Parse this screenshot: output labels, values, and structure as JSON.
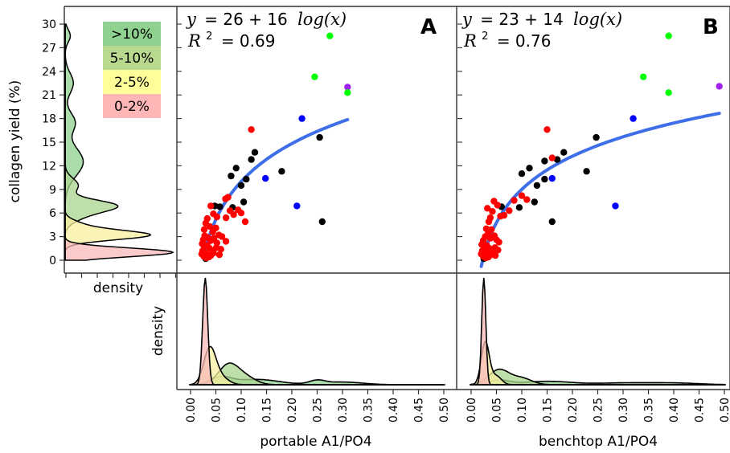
{
  "colors": {
    "black": "#000000",
    "red": "#ff0000",
    "blue": "#0000ff",
    "green": "#00ff00",
    "purple": "#a020f0",
    "fit": "#3f6fe8",
    "bin_0_2": "#f9b9b9",
    "bin_2_5": "#f8efa0",
    "bin_5_10": "#a9d48e",
    "bin_10": "#8fd18f"
  },
  "legend": {
    "items": [
      {
        "label": ">10%",
        "color": "#8fd18f"
      },
      {
        "label": "5-10%",
        "color": "#b9d98f"
      },
      {
        "label": "2-5%",
        "color": "#ffff99"
      },
      {
        "label": "0-2%",
        "color": "#ffb6b6"
      }
    ]
  },
  "chart_data": [
    {
      "panel": "A",
      "type": "scatter",
      "equation": {
        "y": "y",
        "rhs": "= 26 + 16",
        "fn": "log(x)",
        "r2_label": "R",
        "r2_value": "= 0.69"
      },
      "xlabel": "portable A1/PO4",
      "ylabel": "collagen yield (%)",
      "xlim": [
        0,
        0.5
      ],
      "ylim": [
        0,
        30
      ],
      "xticks": [
        "0.00",
        "0.05",
        "0.10",
        "0.15",
        "0.20",
        "0.25",
        "0.30",
        "0.35",
        "0.40",
        "0.45",
        "0.50"
      ],
      "yticks": [
        "0",
        "3",
        "6",
        "9",
        "12",
        "15",
        "18",
        "21",
        "24",
        "27",
        "30"
      ],
      "fit": {
        "a": 26,
        "b": 16,
        "x_from": 0.027,
        "x_to": 0.31
      },
      "points": [
        {
          "x": 0.275,
          "y": 28.5,
          "c": "green"
        },
        {
          "x": 0.31,
          "y": 22.0,
          "c": "purple"
        },
        {
          "x": 0.245,
          "y": 23.3,
          "c": "green"
        },
        {
          "x": 0.31,
          "y": 21.3,
          "c": "green"
        },
        {
          "x": 0.22,
          "y": 18.0,
          "c": "blue"
        },
        {
          "x": 0.148,
          "y": 10.4,
          "c": "blue"
        },
        {
          "x": 0.21,
          "y": 6.9,
          "c": "blue"
        },
        {
          "x": 0.12,
          "y": 16.6,
          "c": "red"
        },
        {
          "x": 0.255,
          "y": 15.6,
          "c": "black"
        },
        {
          "x": 0.127,
          "y": 13.7,
          "c": "black"
        },
        {
          "x": 0.12,
          "y": 12.8,
          "c": "black"
        },
        {
          "x": 0.18,
          "y": 11.3,
          "c": "black"
        },
        {
          "x": 0.11,
          "y": 10.3,
          "c": "black"
        },
        {
          "x": 0.09,
          "y": 11.7,
          "c": "black"
        },
        {
          "x": 0.08,
          "y": 10.7,
          "c": "black"
        },
        {
          "x": 0.1,
          "y": 9.5,
          "c": "black"
        },
        {
          "x": 0.105,
          "y": 7.4,
          "c": "black"
        },
        {
          "x": 0.083,
          "y": 6.7,
          "c": "black"
        },
        {
          "x": 0.058,
          "y": 6.8,
          "c": "black"
        },
        {
          "x": 0.26,
          "y": 4.9,
          "c": "black"
        },
        {
          "x": 0.048,
          "y": 6.9,
          "c": "black"
        },
        {
          "x": 0.03,
          "y": 0.2,
          "c": "black"
        },
        {
          "x": 0.069,
          "y": 7.8,
          "c": "red"
        },
        {
          "x": 0.074,
          "y": 8.0,
          "c": "red"
        },
        {
          "x": 0.1,
          "y": 6.0,
          "c": "red"
        },
        {
          "x": 0.108,
          "y": 4.9,
          "c": "red"
        },
        {
          "x": 0.085,
          "y": 5.8,
          "c": "red"
        },
        {
          "x": 0.094,
          "y": 6.4,
          "c": "red"
        },
        {
          "x": 0.078,
          "y": 6.3,
          "c": "red"
        },
        {
          "x": 0.07,
          "y": 5.4,
          "c": "red"
        },
        {
          "x": 0.052,
          "y": 5.5,
          "c": "red"
        },
        {
          "x": 0.045,
          "y": 5.9,
          "c": "red"
        },
        {
          "x": 0.04,
          "y": 6.9,
          "c": "red"
        },
        {
          "x": 0.033,
          "y": 5.3,
          "c": "red"
        },
        {
          "x": 0.03,
          "y": 4.7,
          "c": "red"
        },
        {
          "x": 0.027,
          "y": 3.9,
          "c": "red"
        },
        {
          "x": 0.038,
          "y": 4.3,
          "c": "red"
        },
        {
          "x": 0.044,
          "y": 3.6,
          "c": "red"
        },
        {
          "x": 0.05,
          "y": 4.1,
          "c": "red"
        },
        {
          "x": 0.056,
          "y": 3.2,
          "c": "red"
        },
        {
          "x": 0.062,
          "y": 3.0,
          "c": "red"
        },
        {
          "x": 0.07,
          "y": 2.4,
          "c": "red"
        },
        {
          "x": 0.046,
          "y": 2.8,
          "c": "red"
        },
        {
          "x": 0.052,
          "y": 2.2,
          "c": "red"
        },
        {
          "x": 0.04,
          "y": 2.5,
          "c": "red"
        },
        {
          "x": 0.034,
          "y": 2.9,
          "c": "red"
        },
        {
          "x": 0.028,
          "y": 3.1,
          "c": "red"
        },
        {
          "x": 0.025,
          "y": 2.6,
          "c": "red"
        },
        {
          "x": 0.023,
          "y": 2.1,
          "c": "red"
        },
        {
          "x": 0.027,
          "y": 1.7,
          "c": "red"
        },
        {
          "x": 0.033,
          "y": 1.9,
          "c": "red"
        },
        {
          "x": 0.038,
          "y": 1.5,
          "c": "red"
        },
        {
          "x": 0.045,
          "y": 1.2,
          "c": "red"
        },
        {
          "x": 0.051,
          "y": 1.6,
          "c": "red"
        },
        {
          "x": 0.06,
          "y": 1.4,
          "c": "red"
        },
        {
          "x": 0.024,
          "y": 1.2,
          "c": "red"
        },
        {
          "x": 0.029,
          "y": 0.9,
          "c": "red"
        },
        {
          "x": 0.034,
          "y": 0.7,
          "c": "red"
        },
        {
          "x": 0.04,
          "y": 0.6,
          "c": "red"
        },
        {
          "x": 0.026,
          "y": 0.5,
          "c": "red"
        },
        {
          "x": 0.031,
          "y": 0.3,
          "c": "red"
        },
        {
          "x": 0.036,
          "y": 0.4,
          "c": "red"
        },
        {
          "x": 0.022,
          "y": 0.8,
          "c": "red"
        },
        {
          "x": 0.045,
          "y": 0.9,
          "c": "red"
        },
        {
          "x": 0.057,
          "y": 0.7,
          "c": "red"
        }
      ],
      "density": {
        "xlim": [
          0,
          0.5
        ],
        "curves": [
          {
            "bin": "0-2%",
            "color": "#f9b9b9",
            "comps": [
              {
                "m": 0.029,
                "s": 0.005,
                "w": 1.0
              }
            ]
          },
          {
            "bin": "2-5%",
            "color": "#f8efa0",
            "comps": [
              {
                "m": 0.038,
                "s": 0.012,
                "w": 0.8
              },
              {
                "m": 0.06,
                "s": 0.015,
                "w": 0.2
              }
            ]
          },
          {
            "bin": "5-10%",
            "color": "#a9d48e",
            "comps": [
              {
                "m": 0.075,
                "s": 0.02,
                "w": 0.75
              },
              {
                "m": 0.11,
                "s": 0.02,
                "w": 0.25
              }
            ]
          },
          {
            "bin": ">10%",
            "color": "#8fd18f",
            "comps": [
              {
                "m": 0.06,
                "s": 0.02,
                "w": 0.25
              },
              {
                "m": 0.13,
                "s": 0.045,
                "w": 0.45
              },
              {
                "m": 0.25,
                "s": 0.015,
                "w": 0.1
              },
              {
                "m": 0.3,
                "s": 0.04,
                "w": 0.2
              }
            ]
          }
        ]
      }
    },
    {
      "panel": "B",
      "type": "scatter",
      "equation": {
        "y": "y",
        "rhs": "= 23 + 14",
        "fn": "log(x)",
        "r2_label": "R",
        "r2_value": "= 0.76"
      },
      "xlabel": "benchtop A1/PO4",
      "xlim": [
        0,
        0.5
      ],
      "ylim": [
        0,
        30
      ],
      "xticks": [
        "0.00",
        "0.05",
        "0.10",
        "0.15",
        "0.20",
        "0.25",
        "0.30",
        "0.35",
        "0.40",
        "0.45",
        "0.50"
      ],
      "fit": {
        "a": 23,
        "b": 14,
        "x_from": 0.02,
        "x_to": 0.49
      },
      "points": [
        {
          "x": 0.39,
          "y": 28.5,
          "c": "green"
        },
        {
          "x": 0.49,
          "y": 22.1,
          "c": "purple"
        },
        {
          "x": 0.34,
          "y": 23.3,
          "c": "green"
        },
        {
          "x": 0.39,
          "y": 21.3,
          "c": "green"
        },
        {
          "x": 0.32,
          "y": 18.0,
          "c": "blue"
        },
        {
          "x": 0.16,
          "y": 10.4,
          "c": "blue"
        },
        {
          "x": 0.285,
          "y": 6.9,
          "c": "blue"
        },
        {
          "x": 0.15,
          "y": 16.6,
          "c": "red"
        },
        {
          "x": 0.247,
          "y": 15.6,
          "c": "black"
        },
        {
          "x": 0.183,
          "y": 13.7,
          "c": "black"
        },
        {
          "x": 0.17,
          "y": 12.8,
          "c": "black"
        },
        {
          "x": 0.228,
          "y": 11.3,
          "c": "black"
        },
        {
          "x": 0.145,
          "y": 12.6,
          "c": "black"
        },
        {
          "x": 0.115,
          "y": 11.7,
          "c": "black"
        },
        {
          "x": 0.1,
          "y": 11.0,
          "c": "black"
        },
        {
          "x": 0.145,
          "y": 10.3,
          "c": "black"
        },
        {
          "x": 0.13,
          "y": 9.5,
          "c": "black"
        },
        {
          "x": 0.125,
          "y": 7.4,
          "c": "black"
        },
        {
          "x": 0.095,
          "y": 6.7,
          "c": "black"
        },
        {
          "x": 0.16,
          "y": 4.9,
          "c": "black"
        },
        {
          "x": 0.06,
          "y": 6.8,
          "c": "black"
        },
        {
          "x": 0.025,
          "y": 0.2,
          "c": "black"
        },
        {
          "x": 0.16,
          "y": 13.0,
          "c": "red"
        },
        {
          "x": 0.1,
          "y": 8.2,
          "c": "red"
        },
        {
          "x": 0.11,
          "y": 7.7,
          "c": "red"
        },
        {
          "x": 0.085,
          "y": 7.6,
          "c": "red"
        },
        {
          "x": 0.075,
          "y": 6.3,
          "c": "red"
        },
        {
          "x": 0.065,
          "y": 5.7,
          "c": "red"
        },
        {
          "x": 0.058,
          "y": 5.6,
          "c": "red"
        },
        {
          "x": 0.052,
          "y": 7.0,
          "c": "red"
        },
        {
          "x": 0.045,
          "y": 7.5,
          "c": "red"
        },
        {
          "x": 0.042,
          "y": 6.2,
          "c": "red"
        },
        {
          "x": 0.038,
          "y": 5.4,
          "c": "red"
        },
        {
          "x": 0.035,
          "y": 4.9,
          "c": "red"
        },
        {
          "x": 0.032,
          "y": 6.6,
          "c": "red"
        },
        {
          "x": 0.03,
          "y": 4.0,
          "c": "red"
        },
        {
          "x": 0.034,
          "y": 3.5,
          "c": "red"
        },
        {
          "x": 0.04,
          "y": 3.9,
          "c": "red"
        },
        {
          "x": 0.046,
          "y": 3.1,
          "c": "red"
        },
        {
          "x": 0.05,
          "y": 2.6,
          "c": "red"
        },
        {
          "x": 0.055,
          "y": 2.3,
          "c": "red"
        },
        {
          "x": 0.038,
          "y": 2.8,
          "c": "red"
        },
        {
          "x": 0.028,
          "y": 3.0,
          "c": "red"
        },
        {
          "x": 0.024,
          "y": 2.5,
          "c": "red"
        },
        {
          "x": 0.021,
          "y": 2.0,
          "c": "red"
        },
        {
          "x": 0.026,
          "y": 1.6,
          "c": "red"
        },
        {
          "x": 0.031,
          "y": 1.9,
          "c": "red"
        },
        {
          "x": 0.036,
          "y": 1.5,
          "c": "red"
        },
        {
          "x": 0.042,
          "y": 1.2,
          "c": "red"
        },
        {
          "x": 0.047,
          "y": 1.6,
          "c": "red"
        },
        {
          "x": 0.053,
          "y": 1.3,
          "c": "red"
        },
        {
          "x": 0.022,
          "y": 1.2,
          "c": "red"
        },
        {
          "x": 0.027,
          "y": 0.9,
          "c": "red"
        },
        {
          "x": 0.032,
          "y": 0.7,
          "c": "red"
        },
        {
          "x": 0.037,
          "y": 0.6,
          "c": "red"
        },
        {
          "x": 0.024,
          "y": 0.5,
          "c": "red"
        },
        {
          "x": 0.029,
          "y": 0.3,
          "c": "red"
        },
        {
          "x": 0.034,
          "y": 0.4,
          "c": "red"
        },
        {
          "x": 0.02,
          "y": 0.8,
          "c": "red"
        },
        {
          "x": 0.043,
          "y": 0.9,
          "c": "red"
        },
        {
          "x": 0.048,
          "y": 0.6,
          "c": "red"
        }
      ],
      "density": {
        "xlim": [
          0,
          0.5
        ],
        "curves": [
          {
            "bin": "0-2%",
            "color": "#f9b9b9",
            "comps": [
              {
                "m": 0.025,
                "s": 0.004,
                "w": 1.0
              }
            ]
          },
          {
            "bin": "2-5%",
            "color": "#f8efa0",
            "comps": [
              {
                "m": 0.028,
                "s": 0.008,
                "w": 0.8
              },
              {
                "m": 0.05,
                "s": 0.01,
                "w": 0.2
              }
            ]
          },
          {
            "bin": "5-10%",
            "color": "#a9d48e",
            "comps": [
              {
                "m": 0.055,
                "s": 0.02,
                "w": 0.7
              },
              {
                "m": 0.1,
                "s": 0.02,
                "w": 0.3
              }
            ]
          },
          {
            "bin": ">10%",
            "color": "#8fd18f",
            "comps": [
              {
                "m": 0.055,
                "s": 0.02,
                "w": 0.2
              },
              {
                "m": 0.15,
                "s": 0.05,
                "w": 0.4
              },
              {
                "m": 0.3,
                "s": 0.05,
                "w": 0.2
              },
              {
                "m": 0.4,
                "s": 0.05,
                "w": 0.2
              }
            ]
          }
        ]
      }
    },
    {
      "panel": "marginal-y",
      "type": "area",
      "ylabel": "collagen yield (%)",
      "xlabel": "density",
      "ylim": [
        0,
        30
      ],
      "curves": [
        {
          "bin": "0-2%",
          "color": "#f9b9b9",
          "comps": [
            {
              "m": 1.0,
              "s": 0.55,
              "w": 1.0
            }
          ]
        },
        {
          "bin": "2-5%",
          "color": "#f8efa0",
          "comps": [
            {
              "m": 3.2,
              "s": 0.6,
              "w": 0.85
            },
            {
              "m": 4.5,
              "s": 0.6,
              "w": 0.15
            }
          ]
        },
        {
          "bin": "5-10%",
          "color": "#a9d48e",
          "comps": [
            {
              "m": 7.0,
              "s": 0.7,
              "w": 0.5
            },
            {
              "m": 5.9,
              "s": 0.9,
              "w": 0.3
            },
            {
              "m": 9.5,
              "s": 0.9,
              "w": 0.2
            }
          ]
        },
        {
          "bin": ">10%",
          "color": "#8fd18f",
          "comps": [
            {
              "m": 12.5,
              "s": 1.8,
              "w": 0.55
            },
            {
              "m": 17.5,
              "s": 1.2,
              "w": 0.2
            },
            {
              "m": 22.5,
              "s": 1.3,
              "w": 0.18
            },
            {
              "m": 28.5,
              "s": 0.8,
              "w": 0.07
            }
          ]
        }
      ]
    }
  ]
}
